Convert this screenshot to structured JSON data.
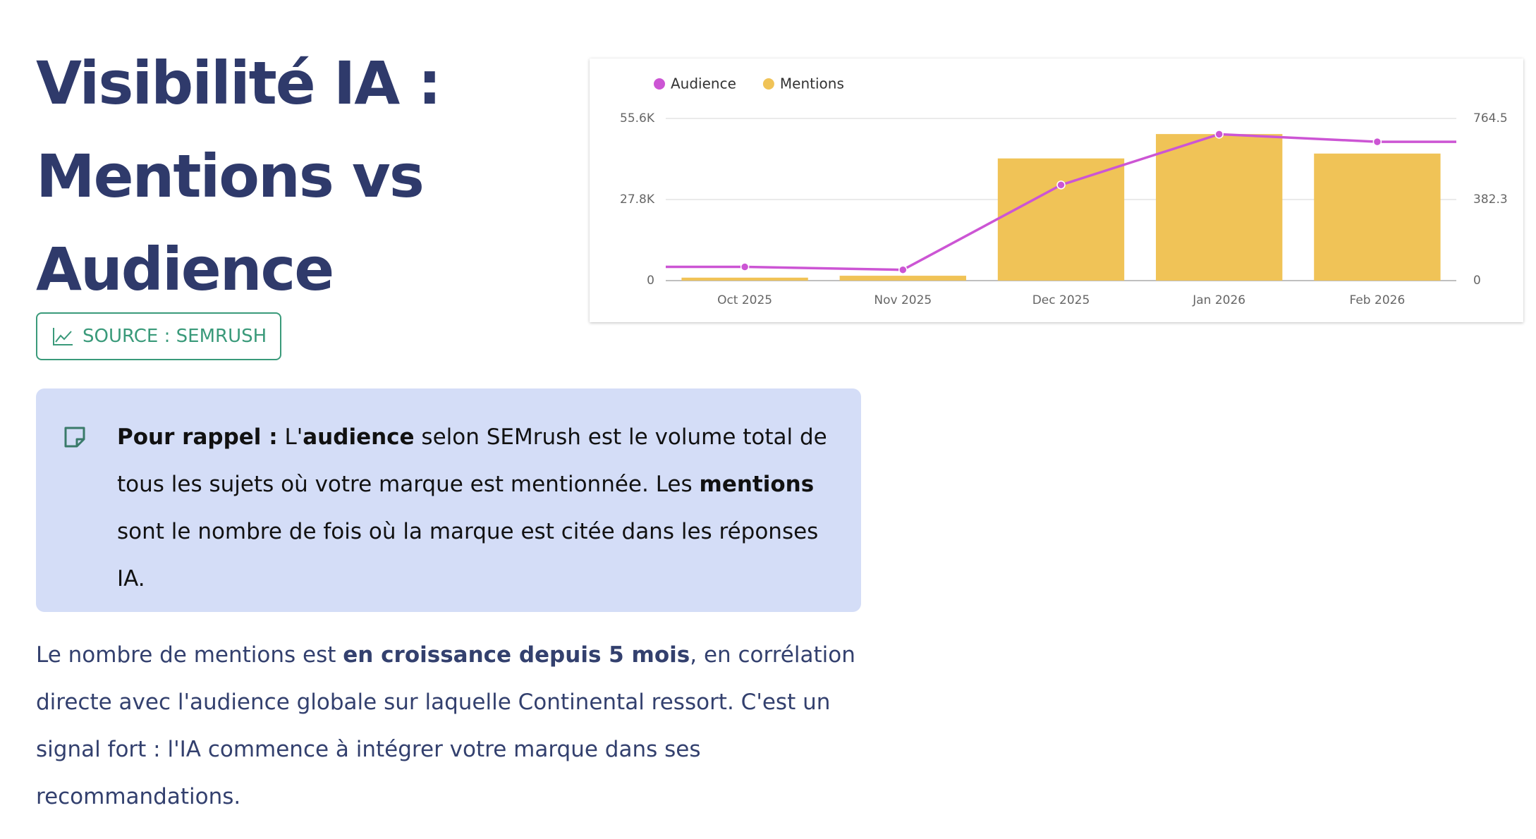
{
  "header": {
    "title_lines": [
      "Visibilité IA :",
      "Mentions vs",
      "Audience"
    ],
    "source": "SOURCE : SEMRUSH"
  },
  "note": {
    "runs": [
      {
        "text": "Pour rappel :",
        "bold": true
      },
      {
        "text": " L'"
      },
      {
        "text": "audience",
        "bold": true
      },
      {
        "text": " selon SEMrush est le volume total de tous les sujets où votre marque est mentionnée. Les "
      },
      {
        "text": "mentions",
        "bold": true
      },
      {
        "text": " sont le nombre de fois où la marque est citée dans les réponses IA."
      }
    ]
  },
  "paragraph": {
    "runs": [
      {
        "text": "Le nombre de mentions est "
      },
      {
        "text": "en croissance depuis 5 mois",
        "bold": true
      },
      {
        "text": ", en corrélation directe avec l'audience globale sur laquelle Continental ressort. C'est un signal fort : l'IA commence à intégrer votre marque dans ses recommandations."
      }
    ]
  },
  "chart_data": {
    "type": "combo",
    "categories": [
      "Oct 2025",
      "Nov 2025",
      "Dec 2025",
      "Jan 2026",
      "Feb 2026"
    ],
    "series": [
      {
        "name": "Audience",
        "type": "line",
        "color": "#cc55d4",
        "values": [
          4700,
          3700,
          32800,
          50200,
          47600
        ]
      },
      {
        "name": "Mentions",
        "type": "bar",
        "axis": "y2",
        "color": "#f0c357",
        "values": [
          14,
          23,
          576,
          691,
          599
        ]
      }
    ],
    "ylim": [
      0,
      55600
    ],
    "yticks": [
      0,
      {
        "value": 27800,
        "label": "27.8K"
      },
      {
        "value": 55600,
        "label": "55.6K"
      }
    ],
    "y2lim": [
      0,
      764.5
    ],
    "y2ticks": [
      0,
      382.3,
      764.5
    ],
    "grid": true,
    "legend": "top-left"
  }
}
